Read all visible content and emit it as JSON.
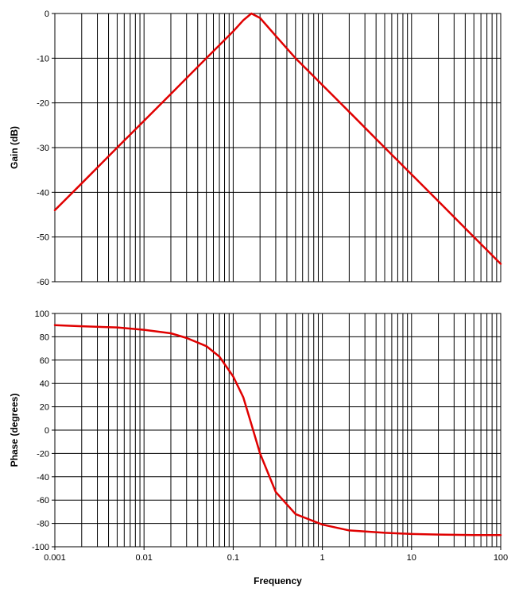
{
  "chart_data": [
    {
      "type": "line",
      "name": "gain-chart",
      "ylabel": "Gain (dB)",
      "xscale": "log",
      "xlim": [
        0.001,
        100
      ],
      "ylim": [
        -60,
        0
      ],
      "yticks": [
        "0",
        "-10",
        "-20",
        "-30",
        "-40",
        "-50",
        "-60"
      ],
      "grid": true,
      "series": [
        {
          "color": "#e00000",
          "x": [
            0.001,
            0.002,
            0.005,
            0.01,
            0.02,
            0.05,
            0.1,
            0.13,
            0.16,
            0.2,
            0.3,
            0.5,
            1,
            2,
            5,
            10,
            20,
            50,
            100
          ],
          "y": [
            -44,
            -38,
            -30,
            -24,
            -18,
            -10,
            -4,
            -1.5,
            0,
            -1,
            -5,
            -10,
            -16,
            -22,
            -30,
            -36,
            -42,
            -50,
            -56
          ]
        }
      ]
    },
    {
      "type": "line",
      "name": "phase-chart",
      "xlabel": "Frequency",
      "ylabel": "Phase (degrees)",
      "xscale": "log",
      "xlim": [
        0.001,
        100
      ],
      "ylim": [
        -100,
        100
      ],
      "xticks": [
        "0.001",
        "0.01",
        "0.1",
        "1",
        "10",
        "100"
      ],
      "yticks": [
        "100",
        "80",
        "60",
        "40",
        "20",
        "0",
        "-20",
        "-40",
        "-60",
        "-80",
        "-100"
      ],
      "grid": true,
      "series": [
        {
          "color": "#e00000",
          "x": [
            0.001,
            0.002,
            0.005,
            0.01,
            0.02,
            0.03,
            0.05,
            0.07,
            0.1,
            0.13,
            0.16,
            0.2,
            0.3,
            0.5,
            1,
            2,
            5,
            10,
            20,
            50,
            100
          ],
          "y": [
            90,
            89,
            88,
            86,
            83,
            79,
            72,
            63,
            46,
            28,
            5,
            -20,
            -53,
            -72,
            -81,
            -86,
            -88,
            -89,
            -89.5,
            -90,
            -90
          ]
        }
      ]
    }
  ]
}
